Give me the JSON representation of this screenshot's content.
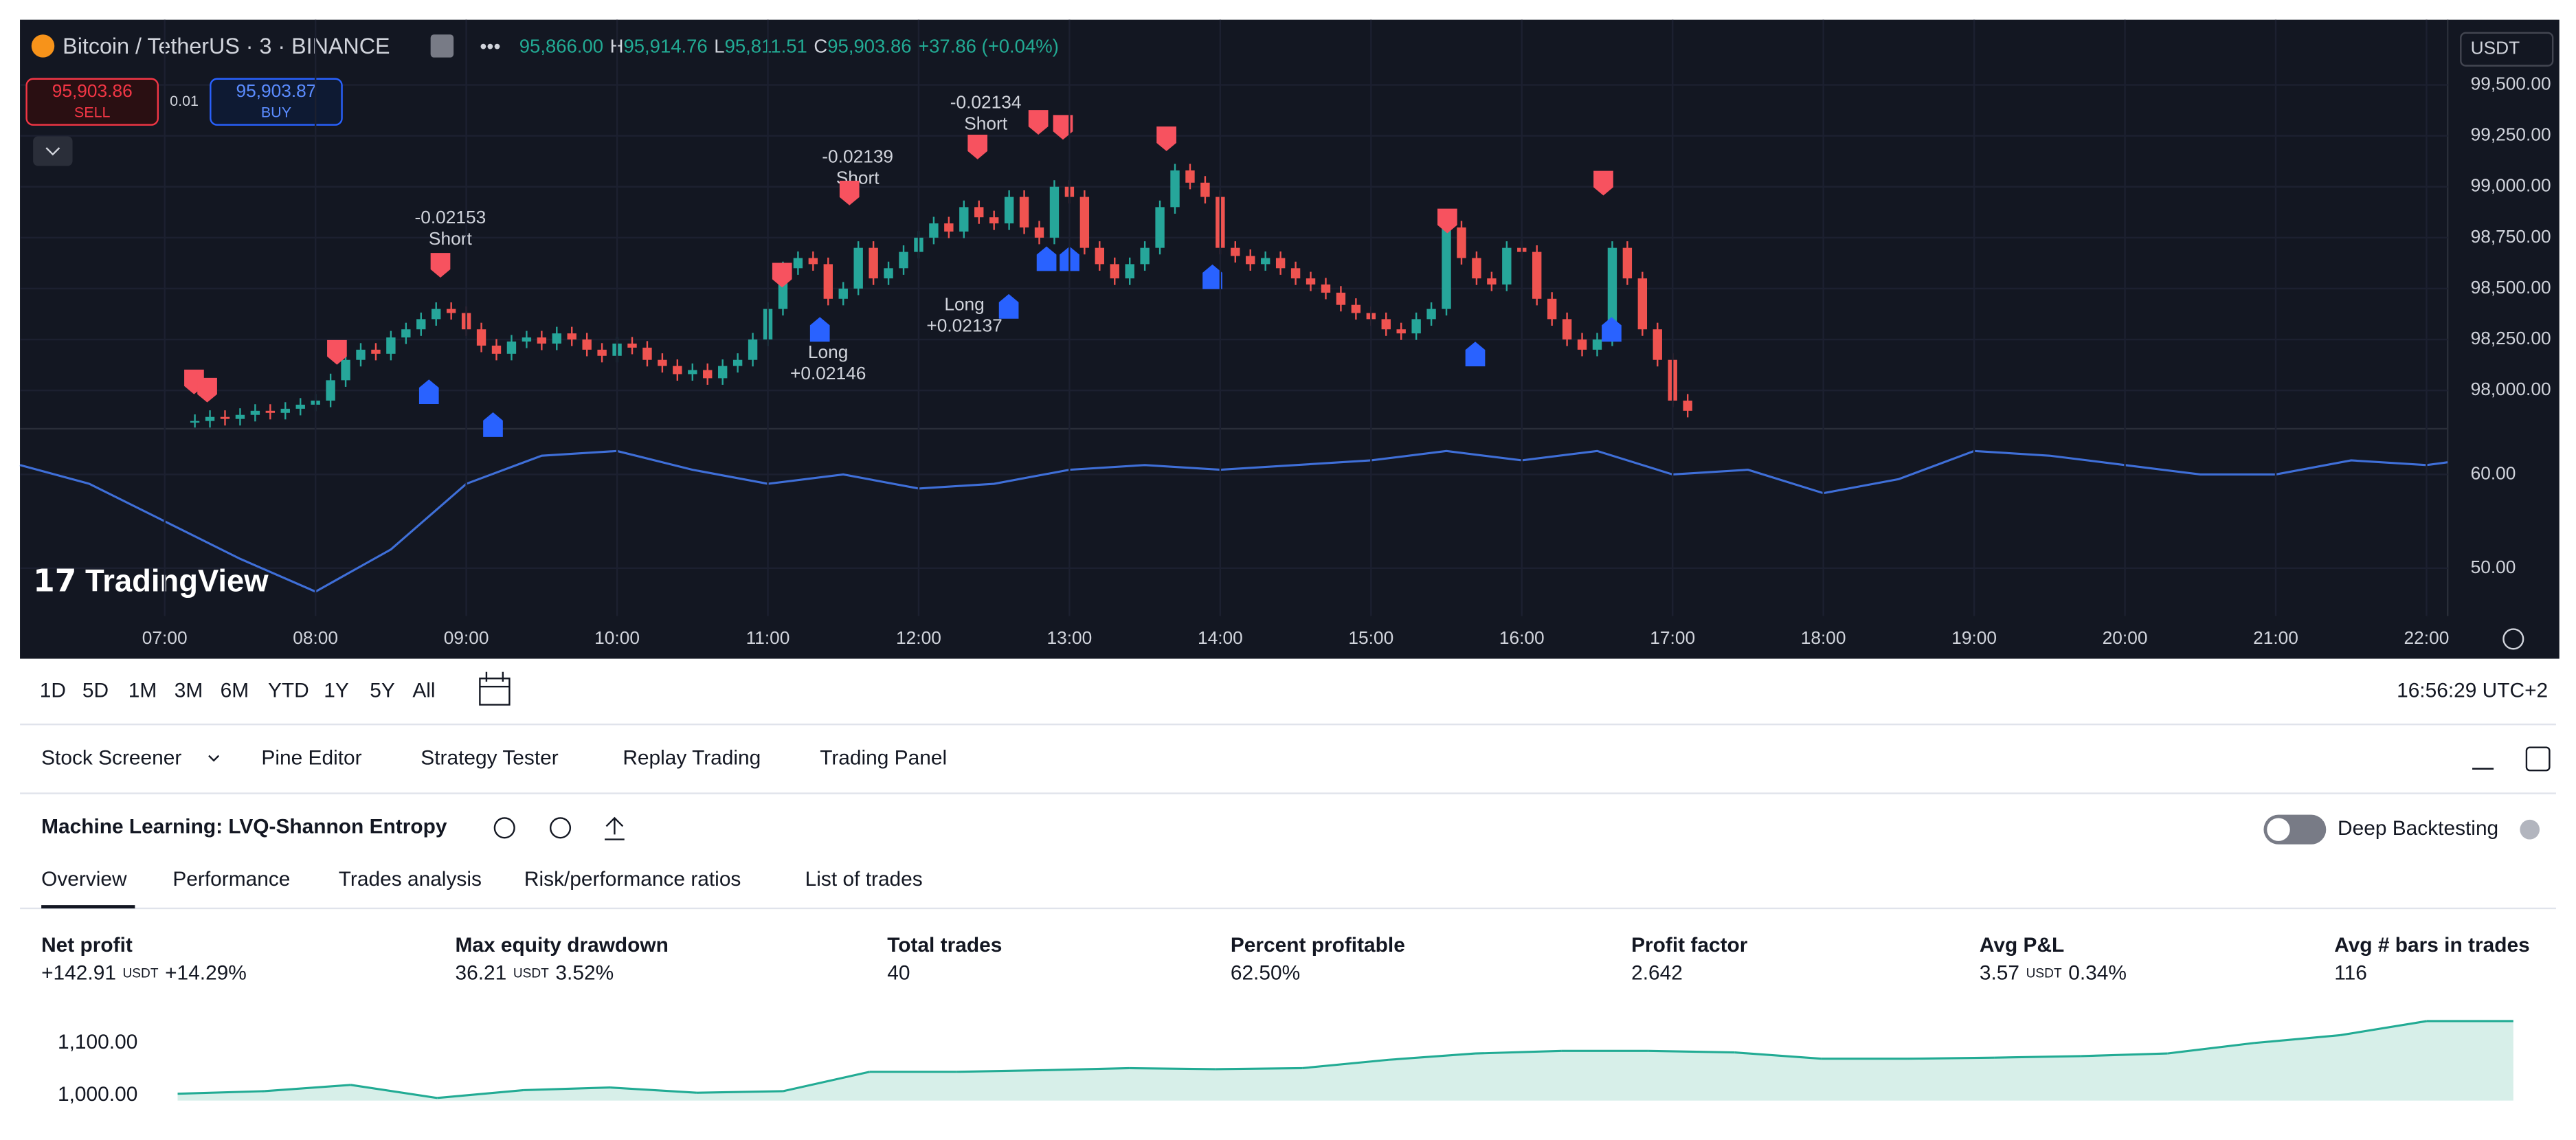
{
  "header": {
    "symbol": "Bitcoin / TetherUS · 3 · BINANCE",
    "ohlc": [
      {
        "value": "95,866.00"
      },
      {
        "label": "H",
        "value": "95,914.76"
      },
      {
        "label": "L",
        "value": "95,811.51"
      },
      {
        "label": "C",
        "value": "95,903.86"
      }
    ],
    "change": "+37.86 (+0.04%)",
    "currency": "USDT"
  },
  "order_panel": {
    "sell_price": "95,903.86",
    "sell": "SELL",
    "quantity": "0.01",
    "buy_price": "95,903.87",
    "buy": "BUY"
  },
  "logo": "TradingView",
  "price_chart": {
    "ylim": [
      97820,
      99820
    ],
    "yticks": [
      {
        "value": 98000,
        "label": "98,000.00"
      },
      {
        "value": 98250,
        "label": "98,250.00"
      },
      {
        "value": 98500,
        "label": "98,500.00"
      },
      {
        "value": 98750,
        "label": "98,750.00"
      },
      {
        "value": 99000,
        "label": "99,000.00"
      },
      {
        "value": 99250,
        "label": "99,250.00"
      },
      {
        "value": 99500,
        "label": "99,500.00"
      }
    ],
    "x": [
      7.2,
      7.3,
      7.4,
      7.5,
      7.6,
      7.7,
      7.8,
      7.9,
      8.0,
      8.1,
      8.2,
      8.3,
      8.4,
      8.5,
      8.6,
      8.7,
      8.8,
      8.9,
      9.0,
      9.1,
      9.2,
      9.3,
      9.4,
      9.5,
      9.6,
      9.7,
      9.8,
      9.9,
      10.0,
      10.1,
      10.2,
      10.3,
      10.4,
      10.5,
      10.6,
      10.7,
      10.8,
      10.9,
      11.0,
      11.1,
      11.2,
      11.3,
      11.4,
      11.5,
      11.6,
      11.7,
      11.8,
      11.9,
      12.0,
      12.1,
      12.2,
      12.3,
      12.4,
      12.5,
      12.6,
      12.7,
      12.8,
      12.9,
      13.0,
      13.1,
      13.2,
      13.3,
      13.4,
      13.5,
      13.6,
      13.7,
      13.8,
      13.9,
      14.0,
      14.1,
      14.2,
      14.3,
      14.4,
      14.5,
      14.6,
      14.7,
      14.8,
      14.9,
      15.0,
      15.1,
      15.2,
      15.3,
      15.4,
      15.5,
      15.6,
      15.7,
      15.8,
      15.9,
      16.0,
      16.1,
      16.2,
      16.3,
      16.4,
      16.5,
      16.6,
      16.7,
      16.8,
      16.9,
      17.0,
      17.1
    ],
    "closes": [
      97850,
      97870,
      97860,
      97880,
      97900,
      97890,
      97910,
      97930,
      97950,
      98050,
      98150,
      98200,
      98180,
      98260,
      98300,
      98350,
      98400,
      98380,
      98300,
      98220,
      98180,
      98240,
      98260,
      98230,
      98280,
      98250,
      98200,
      98170,
      98230,
      98210,
      98150,
      98120,
      98080,
      98100,
      98060,
      98120,
      98150,
      98250,
      98400,
      98600,
      98650,
      98620,
      98450,
      98500,
      98700,
      98550,
      98600,
      98680,
      98750,
      98820,
      98780,
      98900,
      98850,
      98820,
      98950,
      98800,
      98750,
      99000,
      98950,
      98700,
      98620,
      98550,
      98620,
      98700,
      98900,
      99080,
      99020,
      98950,
      98700,
      98660,
      98620,
      98650,
      98600,
      98550,
      98520,
      98480,
      98420,
      98380,
      98350,
      98300,
      98280,
      98350,
      98400,
      98800,
      98650,
      98550,
      98520,
      98700,
      98680,
      98450,
      98350,
      98250,
      98200,
      98250,
      98700,
      98550,
      98300,
      98150,
      97950,
      97900
    ],
    "trade_labels": [
      {
        "text": "-0.02153",
        "side": "Short"
      },
      {
        "text": "-0.02139",
        "side": "Short"
      },
      {
        "text": "-0.02134",
        "side": "Short"
      },
      {
        "side": "Long",
        "text": "+0.02146"
      },
      {
        "side": "Long",
        "text": "+0.02137"
      }
    ]
  },
  "oscillator": {
    "ylim": [
      44.9,
      64.7
    ],
    "yticks": [
      {
        "value": 50,
        "label": "50.00"
      },
      {
        "value": 60,
        "label": "60.00"
      }
    ],
    "x": [
      6.04,
      6.5,
      7.0,
      7.5,
      8.0,
      8.5,
      9.0,
      9.5,
      10.0,
      10.5,
      11.0,
      11.5,
      12.0,
      12.5,
      13.0,
      13.5,
      14.0,
      14.5,
      15.0,
      15.5,
      16.0,
      16.5,
      17.0,
      17.5,
      18.0,
      18.5,
      19.0,
      19.5,
      20.0,
      20.5,
      21.0,
      21.5,
      22.0,
      22.14
    ],
    "values": [
      61,
      59,
      55,
      51,
      47.5,
      52,
      59,
      62,
      62.5,
      60.5,
      59,
      60,
      58.5,
      59,
      60.5,
      61,
      60.5,
      61,
      61.5,
      62.5,
      61.5,
      62.5,
      60,
      60.5,
      58,
      59.5,
      62.5,
      62,
      61,
      60,
      60,
      61.5,
      61,
      61.3
    ],
    "color": "#3f6fd8"
  },
  "time_axis": {
    "xlim": [
      6.04,
      22.14
    ],
    "xticks": [
      {
        "value": 7,
        "label": "07:00"
      },
      {
        "value": 8,
        "label": "08:00"
      },
      {
        "value": 9,
        "label": "09:00"
      },
      {
        "value": 10,
        "label": "10:00"
      },
      {
        "value": 11,
        "label": "11:00"
      },
      {
        "value": 12,
        "label": "12:00"
      },
      {
        "value": 13,
        "label": "13:00"
      },
      {
        "value": 14,
        "label": "14:00"
      },
      {
        "value": 15,
        "label": "15:00"
      },
      {
        "value": 16,
        "label": "16:00"
      },
      {
        "value": 17,
        "label": "17:00"
      },
      {
        "value": 18,
        "label": "18:00"
      },
      {
        "value": 19,
        "label": "19:00"
      },
      {
        "value": 20,
        "label": "20:00"
      },
      {
        "value": 21,
        "label": "21:00"
      },
      {
        "value": 22,
        "label": "22:00"
      }
    ]
  },
  "toolbar": {
    "ranges": [
      "1D",
      "5D",
      "1M",
      "3M",
      "6M",
      "YTD",
      "1Y",
      "5Y",
      "All"
    ],
    "clock": "16:56:29 UTC+2"
  },
  "panel_tabs": [
    "Stock Screener",
    "Pine Editor",
    "Strategy Tester",
    "Replay Trading",
    "Trading Panel"
  ],
  "strategy": {
    "name": "Machine Learning: LVQ-Shannon Entropy",
    "deep_backtesting": "Deep Backtesting",
    "tabs": [
      "Overview",
      "Performance",
      "Trades analysis",
      "Risk/performance ratios",
      "List of trades"
    ],
    "stats": [
      {
        "label": "Net profit",
        "value": "+142.91",
        "unit": "USDT",
        "percent": "+14.29%"
      },
      {
        "label": "Max equity drawdown",
        "value": "36.21",
        "unit": "USDT",
        "percent": "3.52%"
      },
      {
        "label": "Total trades",
        "value": "40"
      },
      {
        "label": "Percent profitable",
        "value": "62.50%"
      },
      {
        "label": "Profit factor",
        "value": "2.642"
      },
      {
        "label": "Avg P&L",
        "value": "3.57",
        "unit": "USDT",
        "percent": "0.34%"
      },
      {
        "label": "Avg # bars in trades",
        "value": "116"
      }
    ]
  },
  "equity": {
    "ylim": [
      990,
      1147
    ],
    "yticks": [
      {
        "value": 1000,
        "label": "1,000.00"
      },
      {
        "value": 1100,
        "label": "1,100.00"
      }
    ],
    "values": [
      1003,
      1008,
      1020,
      995,
      1010,
      1015,
      1005,
      1008,
      1045,
      1045,
      1048,
      1052,
      1050,
      1052,
      1068,
      1080,
      1085,
      1085,
      1082,
      1070,
      1070,
      1072,
      1075,
      1080,
      1100,
      1115,
      1142,
      1142
    ],
    "color": "#22ab94"
  }
}
